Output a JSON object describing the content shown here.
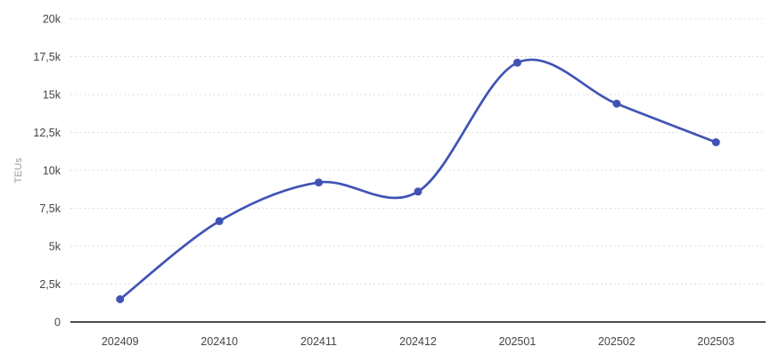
{
  "chart_data": {
    "type": "line",
    "title": "",
    "xlabel": "",
    "ylabel": "TEUs",
    "categories": [
      "202409",
      "202410",
      "202411",
      "202412",
      "202501",
      "202502",
      "202503"
    ],
    "series": [
      {
        "name": "TEUs",
        "values": [
          1500,
          6650,
          9200,
          8600,
          17100,
          14400,
          11850
        ]
      }
    ],
    "ylim": [
      0,
      20000
    ],
    "y_ticks": [
      0,
      2500,
      5000,
      7500,
      10000,
      12500,
      15000,
      17500,
      20000
    ],
    "y_tick_labels": [
      "0",
      "2,5k",
      "5k",
      "7,5k",
      "10k",
      "12,5k",
      "15k",
      "17,5k",
      "20k"
    ],
    "grid": true,
    "gridline_style": "dotted",
    "legend": false,
    "smooth": true,
    "marker": "circle",
    "colors": {
      "line": "#4053b5",
      "marker": "#4053b5",
      "gridline": "#dcdcdc",
      "axis_line": "#333333",
      "tick_label": "#444444",
      "axis_title": "#999999",
      "background": "#ffffff"
    }
  }
}
